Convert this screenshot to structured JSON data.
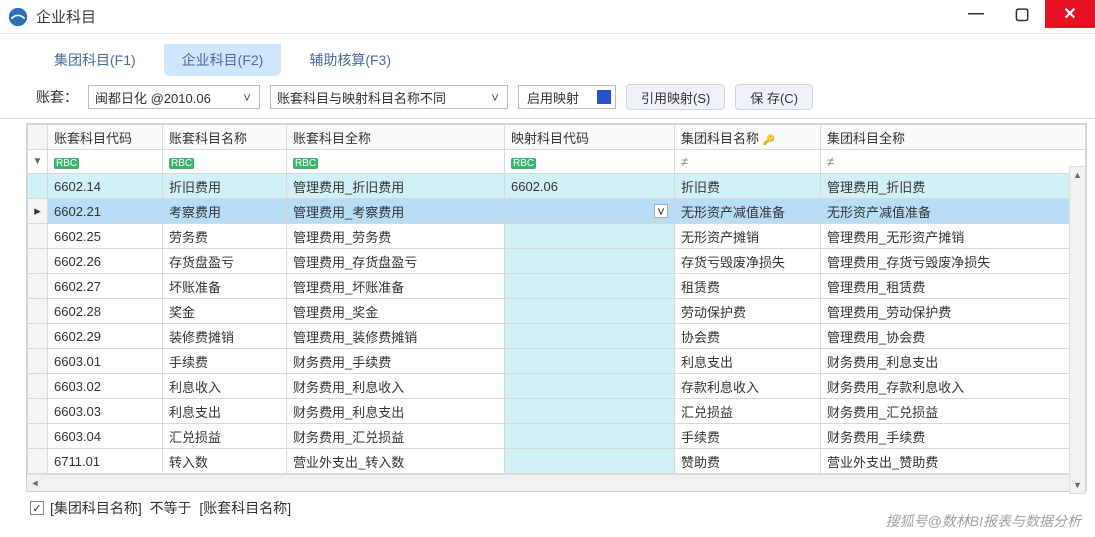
{
  "window": {
    "title": "企业科目"
  },
  "tabs": {
    "t1": "集团科目(F1)",
    "t2": "企业科目(F2)",
    "t3": "辅助核算(F3)",
    "active_index": 1
  },
  "toolbar": {
    "ledger_label": "账套：",
    "ledger_value": "闽都日化 @2010.06",
    "filter_value": "账套科目与映射科目名称不同",
    "enable_label": "启用映射",
    "btn_cite": "引用映射(S)",
    "btn_save": "保 存(C)"
  },
  "columns": {
    "c1": "账套科目代码",
    "c2": "账套科目名称",
    "c3": "账套科目全称",
    "c4": "映射科目代码",
    "c5": "集团科目名称",
    "c6": "集团科目全称"
  },
  "column_widths": {
    "gutter": 20,
    "c1": 115,
    "c2": 124,
    "c3": 218,
    "c4": 170,
    "c5": 146,
    "c6": 230
  },
  "filter_symbols": {
    "abc": "RBC",
    "ne": "≠"
  },
  "rows": [
    {
      "c1": "6602.14",
      "c2": "折旧费用",
      "c3": "管理费用_折旧费用",
      "c4": "6602.06",
      "c5": "折旧费",
      "c6": "管理费用_折旧费",
      "hl": true
    },
    {
      "c1": "6602.21",
      "c2": "考察费用",
      "c3": "管理费用_考察费用",
      "c4": "",
      "c5": "无形资产减值准备",
      "c6": "无形资产减值准备",
      "sel": true,
      "dd": true
    },
    {
      "c1": "6602.25",
      "c2": "劳务费",
      "c3": "管理费用_劳务费",
      "c4": "",
      "c5": "无形资产摊销",
      "c6": "管理费用_无形资产摊销"
    },
    {
      "c1": "6602.26",
      "c2": "存货盘盈亏",
      "c3": "管理费用_存货盘盈亏",
      "c4": "",
      "c5": "存货亏毁废净损失",
      "c6": "管理费用_存货亏毁废净损失"
    },
    {
      "c1": "6602.27",
      "c2": "坏账准备",
      "c3": "管理费用_坏账准备",
      "c4": "",
      "c5": "租赁费",
      "c6": "管理费用_租赁费"
    },
    {
      "c1": "6602.28",
      "c2": "奖金",
      "c3": "管理费用_奖金",
      "c4": "",
      "c5": "劳动保护费",
      "c6": "管理费用_劳动保护费"
    },
    {
      "c1": "6602.29",
      "c2": "装修费摊销",
      "c3": "管理费用_装修费摊销",
      "c4": "",
      "c5": "协会费",
      "c6": "管理费用_协会费"
    },
    {
      "c1": "6603.01",
      "c2": "手续费",
      "c3": "财务费用_手续费",
      "c4": "",
      "c5": "利息支出",
      "c6": "财务费用_利息支出"
    },
    {
      "c1": "6603.02",
      "c2": "利息收入",
      "c3": "财务费用_利息收入",
      "c4": "",
      "c5": "存款利息收入",
      "c6": "财务费用_存款利息收入"
    },
    {
      "c1": "6603.03",
      "c2": "利息支出",
      "c3": "财务费用_利息支出",
      "c4": "",
      "c5": "汇兑损益",
      "c6": "财务费用_汇兑损益"
    },
    {
      "c1": "6603.04",
      "c2": "汇兑损益",
      "c3": "财务费用_汇兑损益",
      "c4": "",
      "c5": "手续费",
      "c6": "财务费用_手续费"
    },
    {
      "c1": "6711.01",
      "c2": "转入数",
      "c3": "营业外支出_转入数",
      "c4": "",
      "c5": "赞助费",
      "c6": "营业外支出_赞助费"
    }
  ],
  "footer": {
    "checked": true,
    "text_a": "[集团科目名称]",
    "text_op": "不等于",
    "text_b": "[账套科目名称]"
  },
  "watermark": "搜狐号@数林BI报表与数据分析",
  "colors": {
    "highlight": "#d2f1f6",
    "selected": "#b7ddf7",
    "tab_active_bg": "#cfe6fc",
    "close_bg": "#e81123",
    "toggle": "#2a53c9"
  }
}
